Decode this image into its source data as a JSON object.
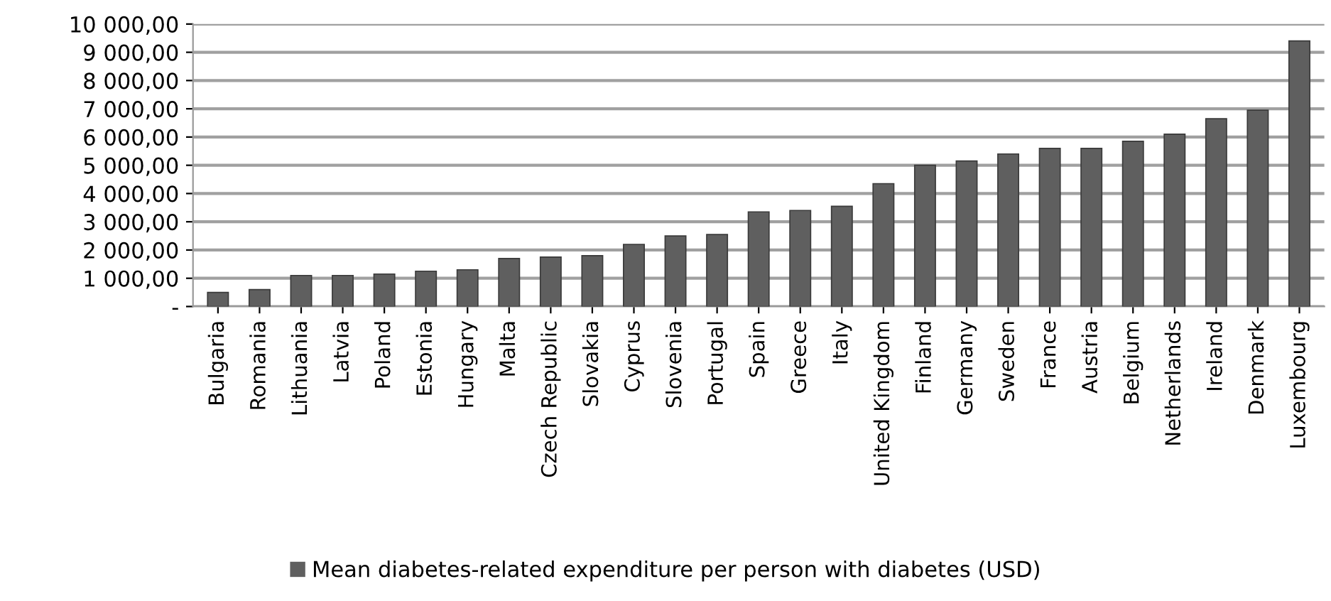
{
  "chart_data": {
    "type": "bar",
    "categories": [
      "Bulgaria",
      "Romania",
      "Lithuania",
      "Latvia",
      "Poland",
      "Estonia",
      "Hungary",
      "Malta",
      "Czech Republic",
      "Slovakia",
      "Cyprus",
      "Slovenia",
      "Portugal",
      "Spain",
      "Greece",
      "Italy",
      "United Kingdom",
      "Finland",
      "Germany",
      "Sweden",
      "France",
      "Austria",
      "Belgium",
      "Netherlands",
      "Ireland",
      "Denmark",
      "Luxembourg"
    ],
    "series": [
      {
        "name": "Mean diabetes-related expenditure per person with diabetes (USD)",
        "color": "#5f5f5f",
        "values": [
          500,
          600,
          1100,
          1100,
          1150,
          1250,
          1300,
          1700,
          1750,
          1800,
          2200,
          2500,
          2550,
          3350,
          3400,
          3550,
          4350,
          5000,
          5150,
          5400,
          5600,
          5600,
          5850,
          6100,
          6650,
          6950,
          9400
        ]
      }
    ],
    "ylim": [
      0,
      10000
    ],
    "yticks": [
      {
        "value": 0,
        "label": "-"
      },
      {
        "value": 1000,
        "label": "1 000,00"
      },
      {
        "value": 2000,
        "label": "2 000,00"
      },
      {
        "value": 3000,
        "label": "3 000,00"
      },
      {
        "value": 4000,
        "label": "4 000,00"
      },
      {
        "value": 5000,
        "label": "5 000,00"
      },
      {
        "value": 6000,
        "label": "6 000,00"
      },
      {
        "value": 7000,
        "label": "7 000,00"
      },
      {
        "value": 8000,
        "label": "8 000,00"
      },
      {
        "value": 9000,
        "label": "9 000,00"
      },
      {
        "value": 10000,
        "label": "10 000,00"
      }
    ],
    "grid": "y",
    "legend": "bottom"
  }
}
